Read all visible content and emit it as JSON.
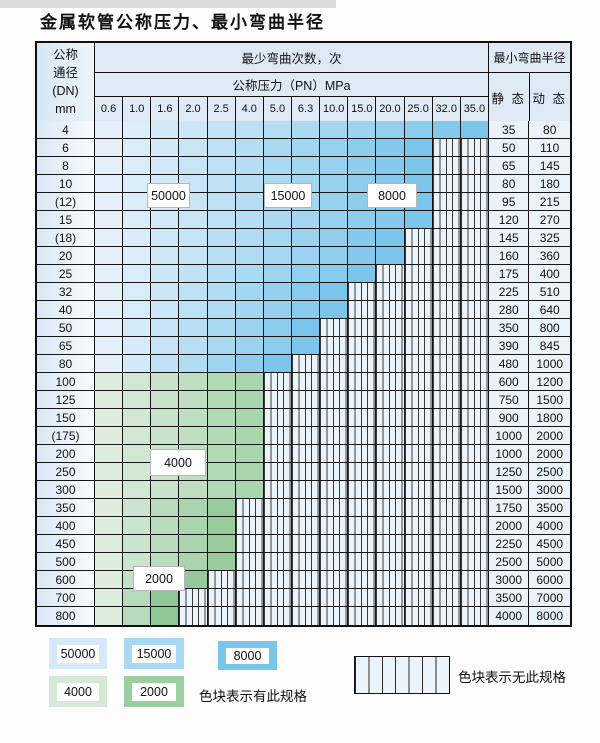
{
  "title": "金属软管公称压力、最小弯曲半径",
  "table": {
    "header": {
      "dn_lines": [
        "公称",
        "通径",
        "(DN)",
        "mm"
      ],
      "bend_cycles": "最少弯曲次数，次",
      "pressure": "公称压力（PN）MPa",
      "radius": "最小弯曲半径",
      "static_label": "静 态",
      "dynamic_label": "动 态",
      "pressures": [
        "0.6",
        "1.0",
        "1.6",
        "2.0",
        "2.5",
        "4.0",
        "5.0",
        "6.3",
        "10.0",
        "15.0",
        "20.0",
        "25.0",
        "32.0",
        "35.0"
      ]
    },
    "rows": [
      {
        "dn": "4",
        "colored": 14,
        "zone": "blue",
        "static": "35",
        "dynamic": "80"
      },
      {
        "dn": "6",
        "colored": 12,
        "zone": "blue",
        "static": "50",
        "dynamic": "110"
      },
      {
        "dn": "8",
        "colored": 12,
        "zone": "blue",
        "static": "65",
        "dynamic": "145"
      },
      {
        "dn": "10",
        "colored": 12,
        "zone": "blue",
        "static": "80",
        "dynamic": "180"
      },
      {
        "dn": "(12)",
        "colored": 12,
        "zone": "blue",
        "static": "95",
        "dynamic": "215"
      },
      {
        "dn": "15",
        "colored": 12,
        "zone": "blue",
        "static": "120",
        "dynamic": "270"
      },
      {
        "dn": "(18)",
        "colored": 11,
        "zone": "blue",
        "static": "145",
        "dynamic": "325"
      },
      {
        "dn": "20",
        "colored": 11,
        "zone": "blue",
        "static": "160",
        "dynamic": "360"
      },
      {
        "dn": "25",
        "colored": 10,
        "zone": "blue",
        "static": "175",
        "dynamic": "400"
      },
      {
        "dn": "32",
        "colored": 9,
        "zone": "blue",
        "static": "225",
        "dynamic": "510"
      },
      {
        "dn": "40",
        "colored": 9,
        "zone": "blue",
        "static": "280",
        "dynamic": "640"
      },
      {
        "dn": "50",
        "colored": 8,
        "zone": "blue",
        "static": "350",
        "dynamic": "800"
      },
      {
        "dn": "65",
        "colored": 8,
        "zone": "blue",
        "static": "390",
        "dynamic": "845"
      },
      {
        "dn": "80",
        "colored": 7,
        "zone": "blue",
        "static": "480",
        "dynamic": "1000"
      },
      {
        "dn": "100",
        "colored": 6,
        "zone": "green",
        "static": "600",
        "dynamic": "1200"
      },
      {
        "dn": "125",
        "colored": 6,
        "zone": "green",
        "static": "750",
        "dynamic": "1500"
      },
      {
        "dn": "150",
        "colored": 6,
        "zone": "green",
        "static": "900",
        "dynamic": "1800"
      },
      {
        "dn": "(175)",
        "colored": 6,
        "zone": "green",
        "static": "1000",
        "dynamic": "2000"
      },
      {
        "dn": "200",
        "colored": 6,
        "zone": "green",
        "static": "1000",
        "dynamic": "2000"
      },
      {
        "dn": "250",
        "colored": 6,
        "zone": "green",
        "static": "1250",
        "dynamic": "2500"
      },
      {
        "dn": "300",
        "colored": 6,
        "zone": "green",
        "static": "1500",
        "dynamic": "3000"
      },
      {
        "dn": "350",
        "colored": 5,
        "zone": "green",
        "static": "1750",
        "dynamic": "3500"
      },
      {
        "dn": "400",
        "colored": 5,
        "zone": "green",
        "static": "2000",
        "dynamic": "4000"
      },
      {
        "dn": "450",
        "colored": 5,
        "zone": "green",
        "static": "2250",
        "dynamic": "4500"
      },
      {
        "dn": "500",
        "colored": 5,
        "zone": "green",
        "static": "2500",
        "dynamic": "5000"
      },
      {
        "dn": "600",
        "colored": 4,
        "zone": "green",
        "static": "3000",
        "dynamic": "6000"
      },
      {
        "dn": "700",
        "colored": 3,
        "zone": "green",
        "static": "3500",
        "dynamic": "7000"
      },
      {
        "dn": "800",
        "colored": 3,
        "zone": "green",
        "static": "4000",
        "dynamic": "8000"
      }
    ]
  },
  "overlays": {
    "l50000": {
      "text": "50000"
    },
    "l15000": {
      "text": "15000"
    },
    "l8000": {
      "text": "8000"
    },
    "l4000": {
      "text": "4000"
    },
    "l2000": {
      "text": "2000"
    }
  },
  "legend": {
    "items": [
      {
        "text": "50000",
        "color": "#d4eaf8"
      },
      {
        "text": "15000",
        "color": "#a8d8f2"
      },
      {
        "text": "8000",
        "color": "#7cc5ea"
      },
      {
        "text": "4000",
        "color": "#d5e9d6"
      },
      {
        "text": "2000",
        "color": "#9ccf9f"
      }
    ],
    "has_spec": "色块表示有此规格",
    "no_spec": "色块表示无此规格"
  },
  "colors": {
    "blue_light": "#e4f1fb",
    "blue_dark": "#7cc5ea",
    "green_light": "#dcecdd",
    "green_dark": "#90c898",
    "hatch_bg": "#ecf4fb",
    "grid": "#161616"
  }
}
